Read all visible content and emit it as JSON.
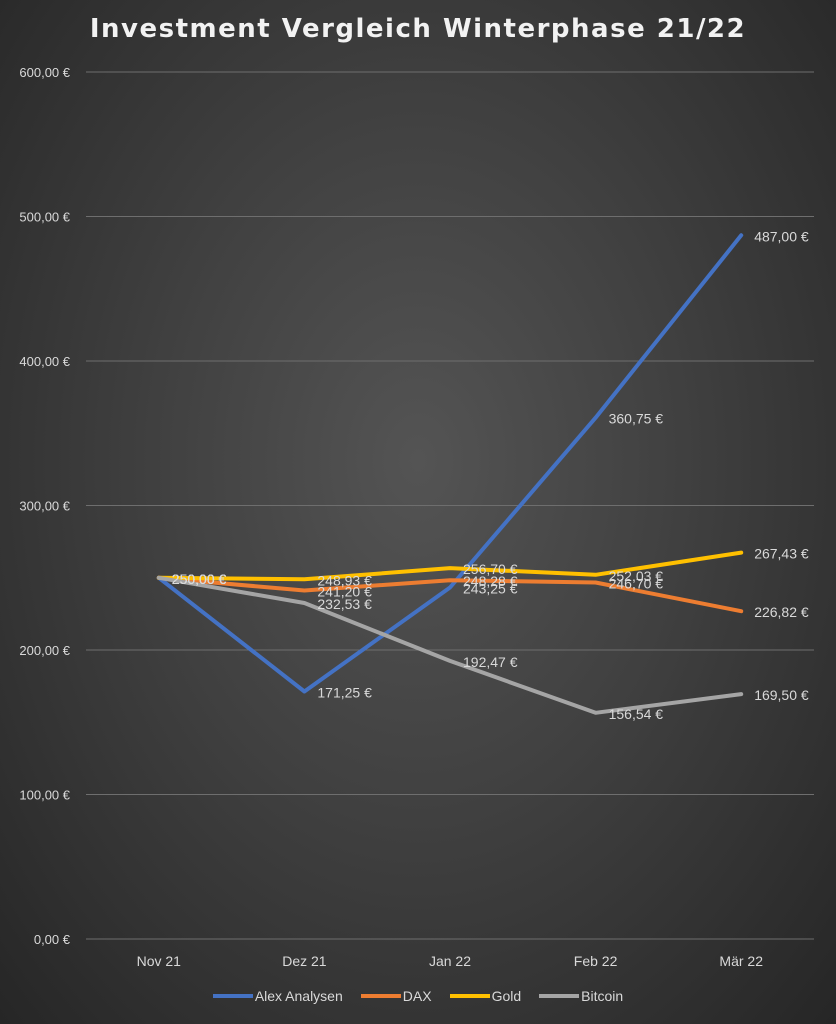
{
  "chart_data": {
    "type": "line",
    "title": "Investment Vergleich Winterphase 21/22",
    "xlabel": "",
    "ylabel": "",
    "categories": [
      "Nov 21",
      "Dez 21",
      "Jan 22",
      "Feb 22",
      "Mär 22"
    ],
    "ylim": [
      0,
      600
    ],
    "yticks": [
      0,
      100,
      200,
      300,
      400,
      500,
      600
    ],
    "ytick_labels": [
      "0,00 €",
      "100,00 €",
      "200,00 €",
      "300,00 €",
      "400,00 €",
      "500,00 €",
      "600,00 €"
    ],
    "grid": true,
    "legend_position": "bottom",
    "series": [
      {
        "name": "Alex Analysen",
        "color": "#4472c4",
        "values": [
          250,
          171.25,
          243.25,
          360.75,
          487
        ],
        "labels": [
          "250,00 €",
          "171,25 €",
          "243,25 €",
          "360,75 €",
          "487,00 €"
        ]
      },
      {
        "name": "DAX",
        "color": "#ed7d31",
        "values": [
          250,
          241.2,
          248.28,
          246.7,
          226.82
        ],
        "labels": [
          "250,00 €",
          "241,20 €",
          "248,28 €",
          "246,70 €",
          "226,82 €"
        ]
      },
      {
        "name": "Gold",
        "color": "#ffc000",
        "values": [
          250,
          248.93,
          256.7,
          252.03,
          267.43
        ],
        "labels": [
          "250,00 €",
          "248,93 €",
          "256,70 €",
          "252,03 €",
          "267,43 €"
        ]
      },
      {
        "name": "Bitcoin",
        "color": "#a5a5a5",
        "values": [
          250,
          232.53,
          192.47,
          156.54,
          169.5
        ],
        "labels": [
          "250,00 €",
          "232,53 €",
          "192,47 €",
          "156,54 €",
          "169,50 €"
        ]
      }
    ]
  }
}
